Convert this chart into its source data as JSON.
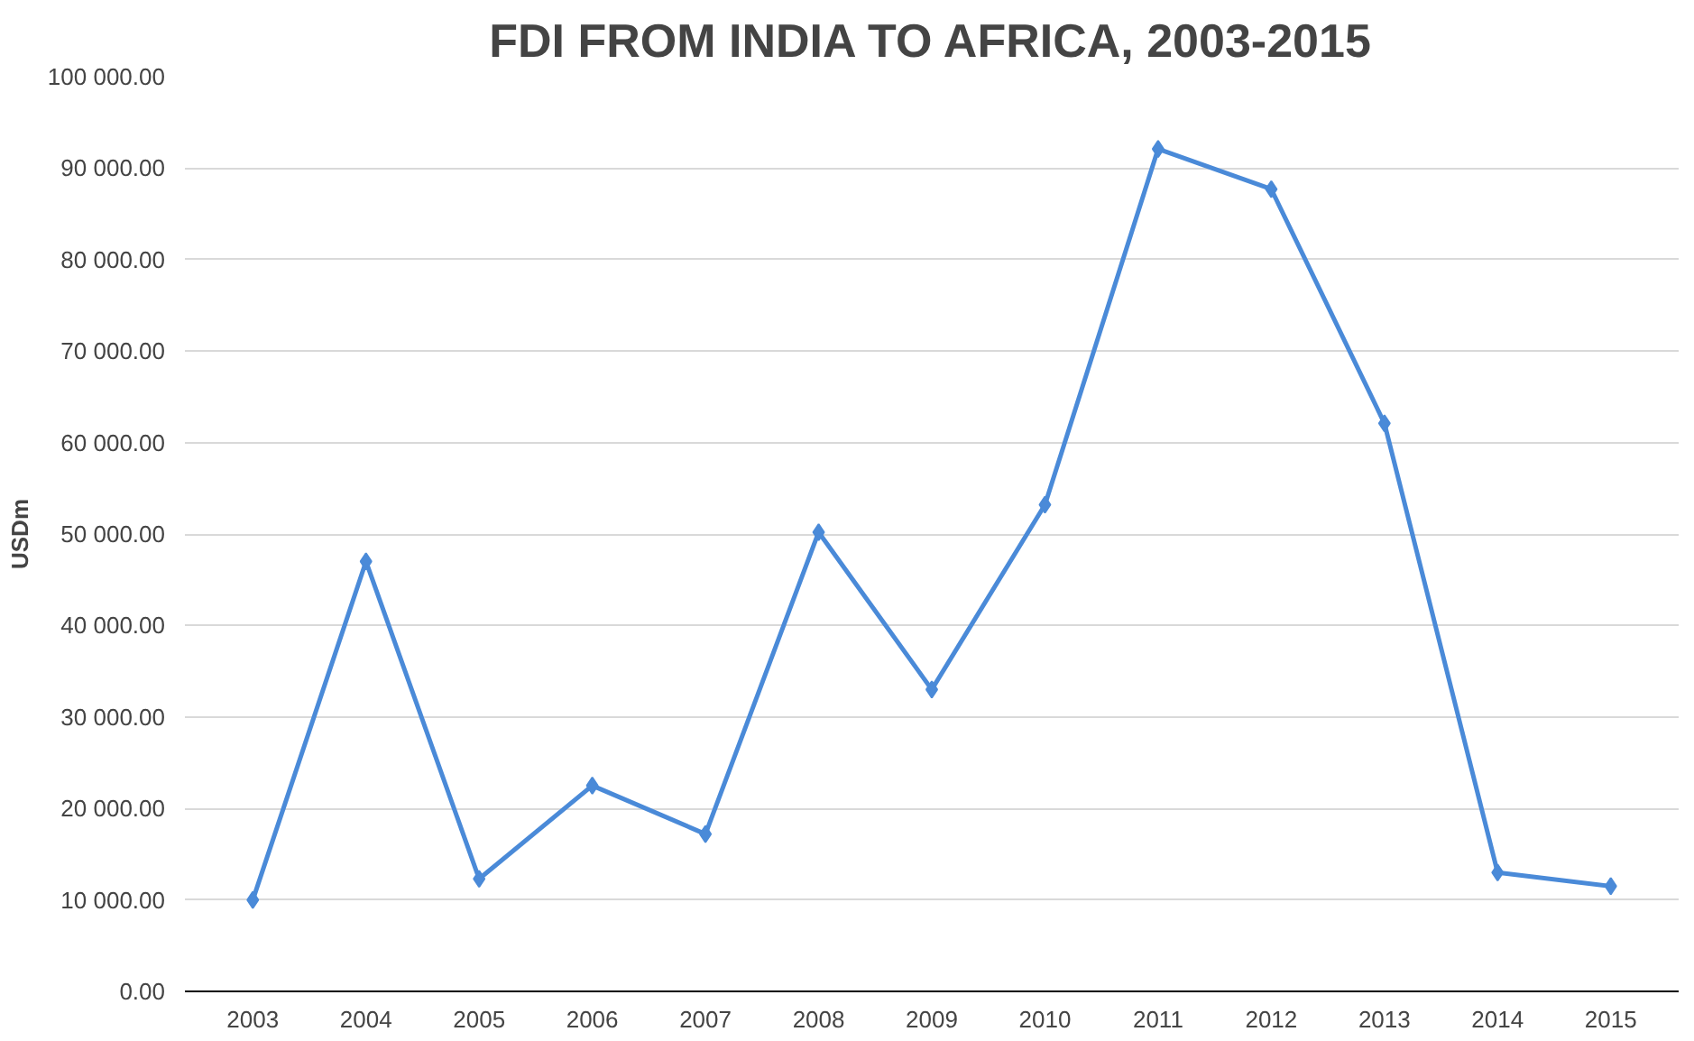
{
  "chart_data": {
    "type": "line",
    "title": "FDI FROM INDIA TO AFRICA, 2003-2015",
    "ylabel": "USDm",
    "categories": [
      "2003",
      "2004",
      "2005",
      "2006",
      "2007",
      "2008",
      "2009",
      "2010",
      "2011",
      "2012",
      "2013",
      "2014",
      "2015"
    ],
    "series": [
      {
        "color": "#4a8ad8",
        "values": [
          10000,
          47000,
          12300,
          22500,
          17200,
          50200,
          33000,
          53200,
          92100,
          87700,
          62100,
          13000,
          11500
        ]
      }
    ],
    "ylim": [
      0,
      100000
    ],
    "yticks": [
      {
        "value": 0,
        "label": "0.00"
      },
      {
        "value": 10000,
        "label": "10 000.00"
      },
      {
        "value": 20000,
        "label": "20 000.00"
      },
      {
        "value": 30000,
        "label": "30 000.00"
      },
      {
        "value": 40000,
        "label": "40 000.00"
      },
      {
        "value": 50000,
        "label": "50 000.00"
      },
      {
        "value": 60000,
        "label": "60 000.00"
      },
      {
        "value": 70000,
        "label": "70 000.00"
      },
      {
        "value": 80000,
        "label": "80 000.00"
      },
      {
        "value": 90000,
        "label": "90 000.00"
      },
      {
        "value": 100000,
        "label": "100 000.00"
      }
    ],
    "grid": "y",
    "marker": "diamond",
    "line_style": "solid"
  }
}
